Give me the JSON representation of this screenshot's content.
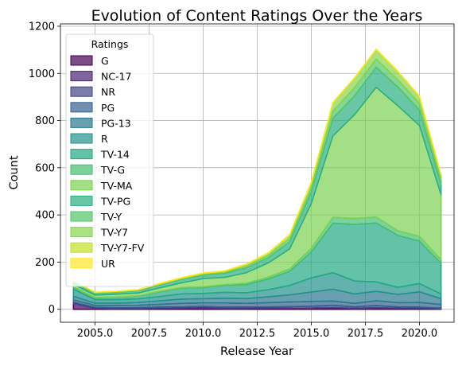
{
  "chart_data": {
    "type": "area",
    "stacked": true,
    "title": "Evolution of Content Ratings Over the Years",
    "xlabel": "Release Year",
    "ylabel": "Count",
    "xlim": [
      2003.4,
      2021.6
    ],
    "ylim": [
      -55,
      1210
    ],
    "xticks": [
      2005,
      2007.5,
      2010,
      2012.5,
      2015,
      2017.5,
      2020
    ],
    "xtick_labels": [
      "2005.0",
      "2007.5",
      "2010.0",
      "2012.5",
      "2015.0",
      "2017.5",
      "2020.0"
    ],
    "yticks": [
      0,
      200,
      400,
      600,
      800,
      1000,
      1200
    ],
    "ytick_labels": [
      "0",
      "200",
      "400",
      "600",
      "800",
      "1000",
      "1200"
    ],
    "grid": true,
    "legend": {
      "title": "Ratings",
      "position": "top-left"
    },
    "x": [
      2004,
      2005,
      2006,
      2007,
      2008,
      2009,
      2010,
      2011,
      2012,
      2013,
      2014,
      2015,
      2016,
      2017,
      2018,
      2019,
      2020,
      2021
    ],
    "series": [
      {
        "name": "G",
        "color": "#440154",
        "values": [
          25,
          5,
          3,
          3,
          4,
          5,
          6,
          4,
          4,
          5,
          5,
          5,
          6,
          3,
          4,
          4,
          3,
          2
        ]
      },
      {
        "name": "NC-17",
        "color": "#482475",
        "values": [
          0,
          0,
          0,
          0,
          0,
          0,
          0,
          0,
          0,
          0,
          0,
          0,
          1,
          1,
          2,
          1,
          1,
          0
        ]
      },
      {
        "name": "NR",
        "color": "#414487",
        "values": [
          5,
          3,
          3,
          4,
          5,
          5,
          6,
          5,
          6,
          5,
          6,
          8,
          10,
          6,
          10,
          5,
          5,
          3
        ]
      },
      {
        "name": "PG",
        "color": "#355f8d",
        "values": [
          10,
          8,
          10,
          10,
          12,
          15,
          15,
          18,
          15,
          18,
          20,
          20,
          18,
          15,
          20,
          18,
          20,
          15
        ]
      },
      {
        "name": "PG-13",
        "color": "#2a788e",
        "values": [
          15,
          10,
          10,
          12,
          15,
          18,
          18,
          20,
          20,
          25,
          30,
          40,
          50,
          40,
          40,
          35,
          45,
          25
        ]
      },
      {
        "name": "R",
        "color": "#21918c",
        "values": [
          30,
          15,
          15,
          15,
          18,
          22,
          22,
          25,
          25,
          30,
          40,
          60,
          70,
          55,
          40,
          30,
          35,
          20
        ]
      },
      {
        "name": "TV-14",
        "color": "#22a884",
        "values": [
          10,
          8,
          10,
          12,
          20,
          25,
          25,
          30,
          35,
          45,
          60,
          110,
          210,
          240,
          250,
          220,
          180,
          130
        ]
      },
      {
        "name": "TV-G",
        "color": "#44bf70",
        "values": [
          1,
          1,
          1,
          1,
          2,
          2,
          3,
          3,
          5,
          8,
          10,
          15,
          25,
          25,
          25,
          20,
          20,
          15
        ]
      },
      {
        "name": "TV-MA",
        "color": "#7ad151",
        "values": [
          10,
          10,
          12,
          12,
          15,
          20,
          35,
          30,
          45,
          60,
          85,
          190,
          345,
          440,
          550,
          530,
          470,
          275
        ]
      },
      {
        "name": "TV-PG",
        "color": "#29af7f",
        "values": [
          10,
          8,
          8,
          10,
          12,
          15,
          15,
          18,
          20,
          22,
          30,
          50,
          75,
          80,
          85,
          80,
          65,
          45
        ]
      },
      {
        "name": "TV-Y",
        "color": "#52c569",
        "values": [
          2,
          2,
          2,
          2,
          3,
          3,
          4,
          4,
          8,
          10,
          15,
          20,
          30,
          35,
          35,
          30,
          28,
          20
        ]
      },
      {
        "name": "TV-Y7",
        "color": "#86d549",
        "values": [
          2,
          2,
          2,
          2,
          3,
          3,
          4,
          5,
          8,
          10,
          15,
          20,
          35,
          40,
          40,
          35,
          30,
          20
        ]
      },
      {
        "name": "TV-Y7-FV",
        "color": "#c2df23",
        "values": [
          0,
          0,
          0,
          0,
          0,
          0,
          0,
          0,
          0,
          0,
          0,
          0,
          1,
          1,
          1,
          1,
          1,
          0
        ]
      },
      {
        "name": "UR",
        "color": "#fde725",
        "values": [
          0,
          0,
          0,
          0,
          1,
          1,
          1,
          1,
          1,
          1,
          1,
          1,
          1,
          1,
          1,
          1,
          1,
          0
        ]
      }
    ]
  }
}
